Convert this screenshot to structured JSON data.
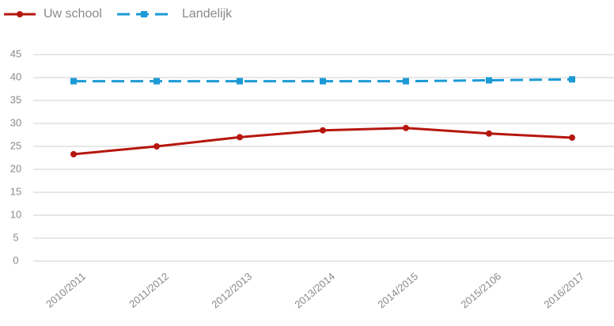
{
  "chart_data": {
    "type": "line",
    "categories": [
      "2010/2011",
      "2011/2012",
      "2012/2013",
      "2013/2014",
      "2014/2015",
      "2015/2106",
      "2016/2017"
    ],
    "series": [
      {
        "name": "Uw school",
        "color": "#b5170f",
        "values": [
          23.3,
          25,
          27,
          28.5,
          29,
          27.8,
          26.9
        ]
      },
      {
        "name": "Landelijk",
        "color": "#1b9ad6",
        "values": [
          39.2,
          39.2,
          39.2,
          39.2,
          39.2,
          39.4,
          39.6
        ]
      }
    ],
    "ylim": [
      0,
      45
    ],
    "yticks": [
      0,
      5,
      10,
      15,
      20,
      25,
      30,
      35,
      40,
      45
    ],
    "grid": true
  }
}
